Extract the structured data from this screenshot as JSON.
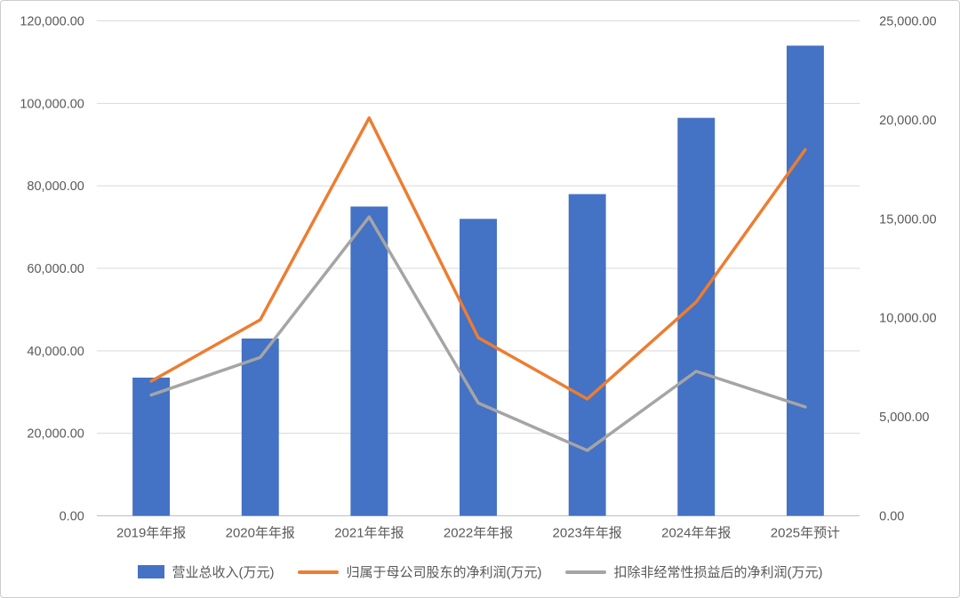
{
  "chart_data": {
    "type": "combo",
    "title": "",
    "categories": [
      "2019年年报",
      "2020年年报",
      "2021年年报",
      "2022年年报",
      "2023年年报",
      "2024年年报",
      "2025年预计"
    ],
    "series": [
      {
        "name": "营业总收入(万元)",
        "type": "bar",
        "axis": "left",
        "color": "#4472C4",
        "values": [
          33500,
          43000,
          75000,
          72000,
          78000,
          96500,
          114000
        ]
      },
      {
        "name": "归属于母公司股东的净利润(万元)",
        "type": "line",
        "axis": "right",
        "color": "#ED7D31",
        "values": [
          6800,
          9900,
          20100,
          9000,
          5900,
          10800,
          18500
        ]
      },
      {
        "name": "扣除非经常性损益后的净利润(万元)",
        "type": "line",
        "axis": "right",
        "color": "#A5A5A5",
        "values": [
          6100,
          8000,
          15100,
          5700,
          3300,
          7300,
          5500
        ]
      }
    ],
    "left_axis": {
      "min": 0,
      "max": 120000,
      "step": 20000,
      "tick_labels": [
        "0.00",
        "20,000.00",
        "40,000.00",
        "60,000.00",
        "80,000.00",
        "100,000.00",
        "120,000.00"
      ]
    },
    "right_axis": {
      "min": 0,
      "max": 25000,
      "step": 5000,
      "tick_labels": [
        "0.00",
        "5,000.00",
        "10,000.00",
        "15,000.00",
        "20,000.00",
        "25,000.00"
      ]
    },
    "grid": true,
    "grid_color": "#d9d9d9",
    "axis_line_color": "#bfbfbf",
    "text_color": "#595959",
    "legend_position": "bottom"
  }
}
